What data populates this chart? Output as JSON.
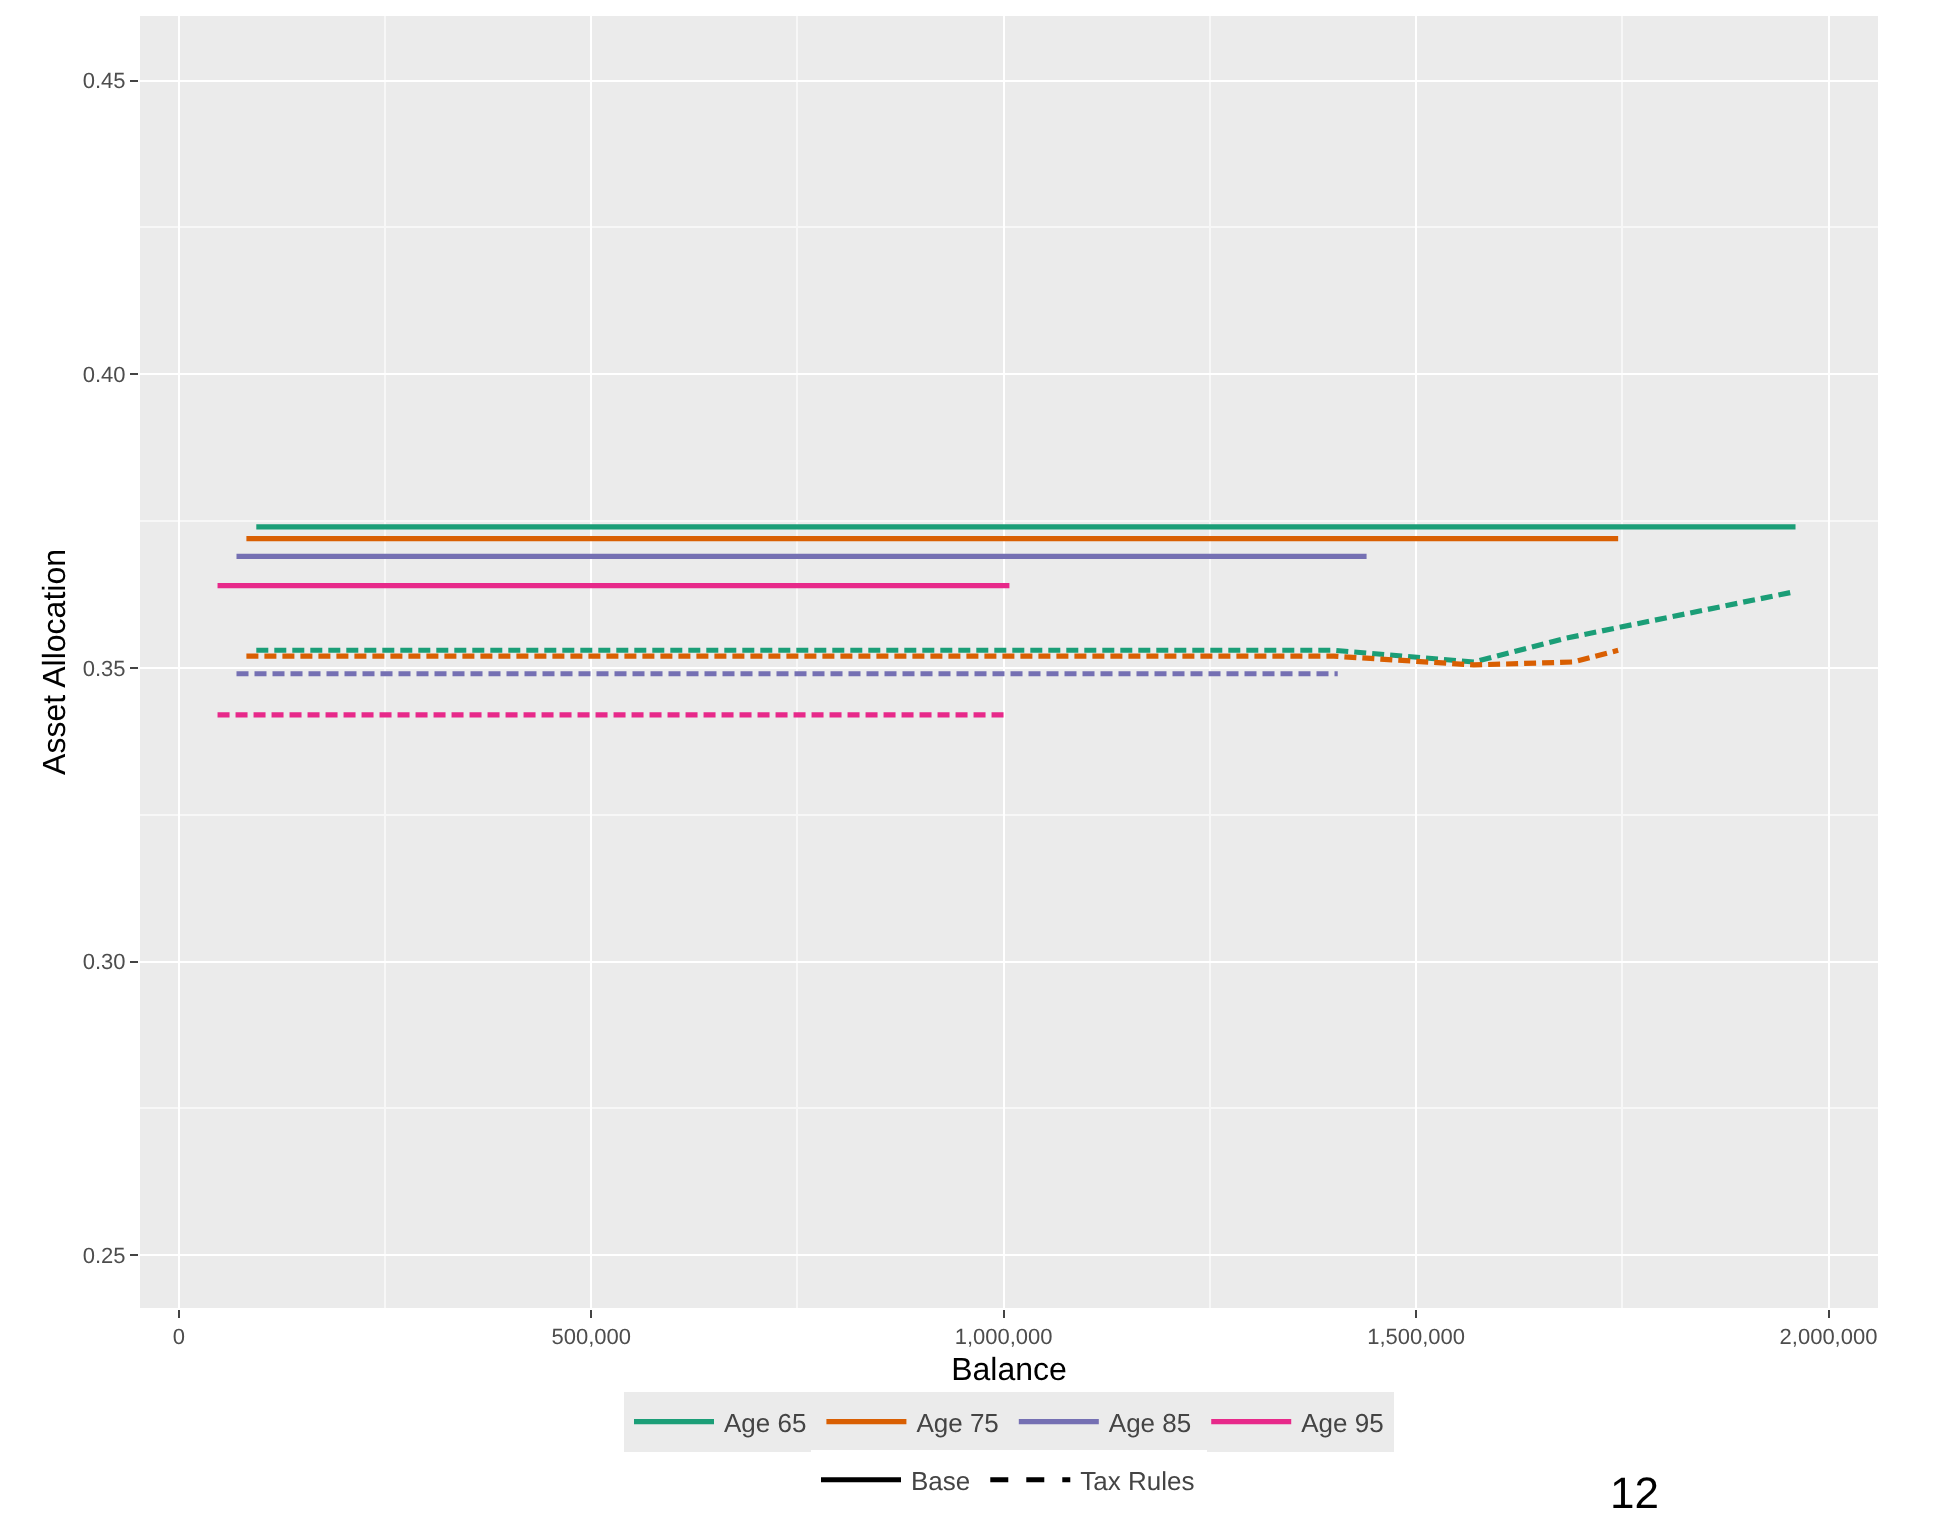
{
  "chart_data": {
    "type": "line",
    "xlabel": "Balance",
    "ylabel": "Asset Allocation",
    "xlim": [
      -47000,
      2060000
    ],
    "ylim": [
      0.241,
      0.461
    ],
    "xticks": [
      0,
      {
        "value": 500000,
        "label": "500,000"
      },
      {
        "value": 1000000,
        "label": "1,000,000"
      },
      {
        "value": 1500000,
        "label": "1,500,000"
      },
      {
        "value": 2000000,
        "label": "2,000,000"
      }
    ],
    "yticks": [
      0.25,
      {
        "value": 0.3,
        "label": "0.30"
      },
      0.35,
      {
        "value": 0.4,
        "label": "0.40"
      },
      0.45
    ],
    "grid": true,
    "legend": "bottom",
    "marker": "none",
    "series": [
      {
        "name": "Age 65",
        "color": "#1b9e77",
        "line_style": "solid",
        "x": [
          94000,
          1960000
        ],
        "values": [
          0.374,
          0.374
        ]
      },
      {
        "name": "Age 75",
        "color": "#d95f02",
        "line_style": "solid",
        "x": [
          82000,
          1745000
        ],
        "values": [
          0.372,
          0.372
        ]
      },
      {
        "name": "Age 85",
        "color": "#7570b3",
        "line_style": "solid",
        "x": [
          70000,
          1440000
        ],
        "values": [
          0.369,
          0.369
        ]
      },
      {
        "name": "Age 95",
        "color": "#e7298a",
        "line_style": "solid",
        "x": [
          47000,
          1007000
        ],
        "values": [
          0.364,
          0.364
        ]
      },
      {
        "color": "#1b9e77",
        "line_style": "dashed",
        "x": [
          94000,
          1400000,
          1570000,
          1680000,
          1960000
        ],
        "values": [
          0.353,
          0.353,
          0.351,
          0.355,
          0.363
        ]
      },
      {
        "color": "#d95f02",
        "line_style": "dashed",
        "x": [
          82000,
          1400000,
          1570000,
          1690000,
          1745000
        ],
        "values": [
          0.352,
          0.352,
          0.3505,
          0.351,
          0.353
        ]
      },
      {
        "color": "#7570b3",
        "line_style": "dashed",
        "x": [
          70000,
          1405000
        ],
        "values": [
          0.349,
          0.349
        ]
      },
      {
        "color": "#e7298a",
        "line_style": "dashed",
        "x": [
          47000,
          1007000
        ],
        "values": [
          0.342,
          0.342
        ]
      },
      {
        "name": "Base",
        "color": "#000000",
        "line_style": "solid"
      },
      {
        "name": "Tax Rules",
        "color": "#000000",
        "line_style": "dashed"
      }
    ],
    "annotations": [
      "12"
    ]
  }
}
